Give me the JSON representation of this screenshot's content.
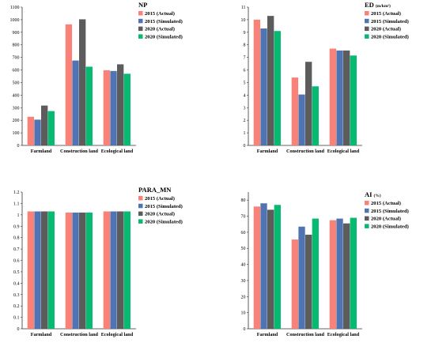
{
  "colors": {
    "a2015": "#F98178",
    "s2015": "#4F74B1",
    "a2020": "#5C5C5C",
    "s2020": "#06BA71"
  },
  "chart_data": [
    {
      "id": "np",
      "type": "bar",
      "title": "NP",
      "title_unit": "",
      "categories": [
        "Farmland",
        "Construction land",
        "Ecological land"
      ],
      "ylim": [
        0,
        1100
      ],
      "yticks": [
        0,
        100,
        200,
        300,
        400,
        500,
        600,
        700,
        800,
        900,
        1000,
        1100
      ],
      "legend_position": "top-right",
      "grid": false,
      "series": [
        {
          "name": "2015 (Actual)",
          "key": "a2015",
          "values": [
            228,
            963,
            598
          ]
        },
        {
          "name": "2015 (Simulated)",
          "key": "s2015",
          "values": [
            205,
            675,
            592
          ]
        },
        {
          "name": "2020 (Actual)",
          "key": "a2020",
          "values": [
            317,
            1003,
            645
          ]
        },
        {
          "name": "2020 (Simulated)",
          "key": "s2020",
          "values": [
            273,
            626,
            570
          ]
        }
      ]
    },
    {
      "id": "ed",
      "type": "bar",
      "title": "ED",
      "title_unit": "(m/km²)",
      "categories": [
        "Farmland",
        "Construction land",
        "Ecological land"
      ],
      "ylim": [
        0,
        11
      ],
      "yticks": [
        0,
        1,
        2,
        3,
        4,
        5,
        6,
        7,
        8,
        9,
        10,
        11
      ],
      "legend_position": "top-right",
      "grid": false,
      "series": [
        {
          "name": "2015 (Actual)",
          "key": "a2015",
          "values": [
            10.0,
            5.4,
            7.7
          ]
        },
        {
          "name": "2015 (Simulated)",
          "key": "s2015",
          "values": [
            9.3,
            4.05,
            7.55
          ]
        },
        {
          "name": "2020 (Actual)",
          "key": "a2020",
          "values": [
            10.3,
            6.65,
            7.55
          ]
        },
        {
          "name": "2020 (Simulated)",
          "key": "s2020",
          "values": [
            9.1,
            4.7,
            7.15
          ]
        }
      ]
    },
    {
      "id": "para",
      "type": "bar",
      "title": "PARA_MN",
      "title_unit": "",
      "categories": [
        "Farmland",
        "Construction land",
        "Ecological land"
      ],
      "ylim": [
        0,
        1.2
      ],
      "yticks": [
        0,
        0.1,
        0.2,
        0.3,
        0.4,
        0.5,
        0.6,
        0.7,
        0.8,
        0.9,
        1,
        1.1,
        1.2
      ],
      "tick_labels": [
        "0",
        "0.1",
        "0.2",
        "0.3",
        "0.4",
        "0.5",
        "0.6",
        "0.7",
        "0.8",
        "0.9",
        "1",
        "1.1",
        "1.2"
      ],
      "legend_position": "top-right",
      "grid": false,
      "series": [
        {
          "name": "2015 (Actual)",
          "key": "a2015",
          "values": [
            1.03,
            1.02,
            1.03
          ]
        },
        {
          "name": "2015 (Simulated)",
          "key": "s2015",
          "values": [
            1.03,
            1.02,
            1.03
          ]
        },
        {
          "name": "2020 (Actual)",
          "key": "a2020",
          "values": [
            1.03,
            1.02,
            1.03
          ]
        },
        {
          "name": "2020 (Simulated)",
          "key": "s2020",
          "values": [
            1.03,
            1.02,
            1.03
          ]
        }
      ]
    },
    {
      "id": "ai",
      "type": "bar",
      "title": "AI",
      "title_unit": "(%)",
      "categories": [
        "Farmland",
        "Construction land",
        "Ecological land"
      ],
      "ylim": [
        0,
        85
      ],
      "yticks": [
        0,
        10,
        20,
        30,
        40,
        50,
        60,
        70,
        80
      ],
      "legend_position": "top-right",
      "grid": false,
      "series": [
        {
          "name": "2015 (Actual)",
          "key": "a2015",
          "values": [
            76,
            55.5,
            67.5
          ]
        },
        {
          "name": "2015 (Simulated)",
          "key": "s2015",
          "values": [
            78,
            63.5,
            68.5
          ]
        },
        {
          "name": "2020 (Actual)",
          "key": "a2020",
          "values": [
            74,
            58.5,
            65.5
          ]
        },
        {
          "name": "2020 (Simulated)",
          "key": "s2020",
          "values": [
            77,
            68.5,
            69.0
          ]
        }
      ]
    }
  ]
}
